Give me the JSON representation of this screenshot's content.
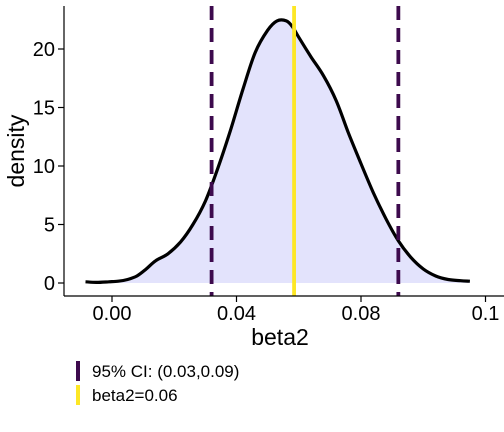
{
  "chart_data": {
    "type": "area",
    "xlabel": "beta2",
    "ylabel": "density",
    "xlim": [
      -0.014,
      0.1
    ],
    "ylim": [
      -1.0,
      23.5
    ],
    "x_ticks": [
      0.0,
      0.04,
      0.08,
      0.12
    ],
    "x_tick_labels": [
      "0.00",
      "0.04",
      "0.08",
      "0.1"
    ],
    "y_ticks": [
      0,
      5,
      10,
      15,
      20
    ],
    "y_tick_labels": [
      "0",
      "5",
      "10",
      "15",
      "20"
    ],
    "grid": false,
    "fill_color": "#e3e3fc",
    "line_color": "#000000",
    "density": {
      "x": [
        -0.0085,
        -0.005,
        -0.001,
        0.002,
        0.005,
        0.008,
        0.011,
        0.014,
        0.018,
        0.022,
        0.026,
        0.03,
        0.034,
        0.038,
        0.042,
        0.046,
        0.05,
        0.053,
        0.056,
        0.058,
        0.06,
        0.064,
        0.068,
        0.072,
        0.076,
        0.08,
        0.084,
        0.088,
        0.092,
        0.096,
        0.1,
        0.104,
        0.108,
        0.112,
        0.115
      ],
      "y": [
        0.1,
        0.05,
        0.1,
        0.15,
        0.3,
        0.6,
        1.2,
        1.9,
        2.5,
        3.5,
        5.0,
        7.0,
        9.8,
        13.0,
        16.5,
        19.7,
        21.6,
        22.4,
        22.4,
        21.9,
        21.0,
        19.3,
        17.7,
        15.6,
        12.8,
        10.2,
        7.7,
        5.5,
        3.6,
        2.2,
        1.2,
        0.6,
        0.3,
        0.2,
        0.15
      ]
    },
    "vlines": [
      {
        "x": 0.032,
        "color": "#3d0a4d",
        "style": "dashed",
        "legend": "95% CI: (0.03,0.09)"
      },
      {
        "x": 0.092,
        "color": "#3d0a4d",
        "style": "dashed",
        "legend": null
      },
      {
        "x": 0.0585,
        "color": "#fde725",
        "style": "solid",
        "legend": "beta2=0.06"
      }
    ],
    "legend_position": "bottom-left"
  }
}
